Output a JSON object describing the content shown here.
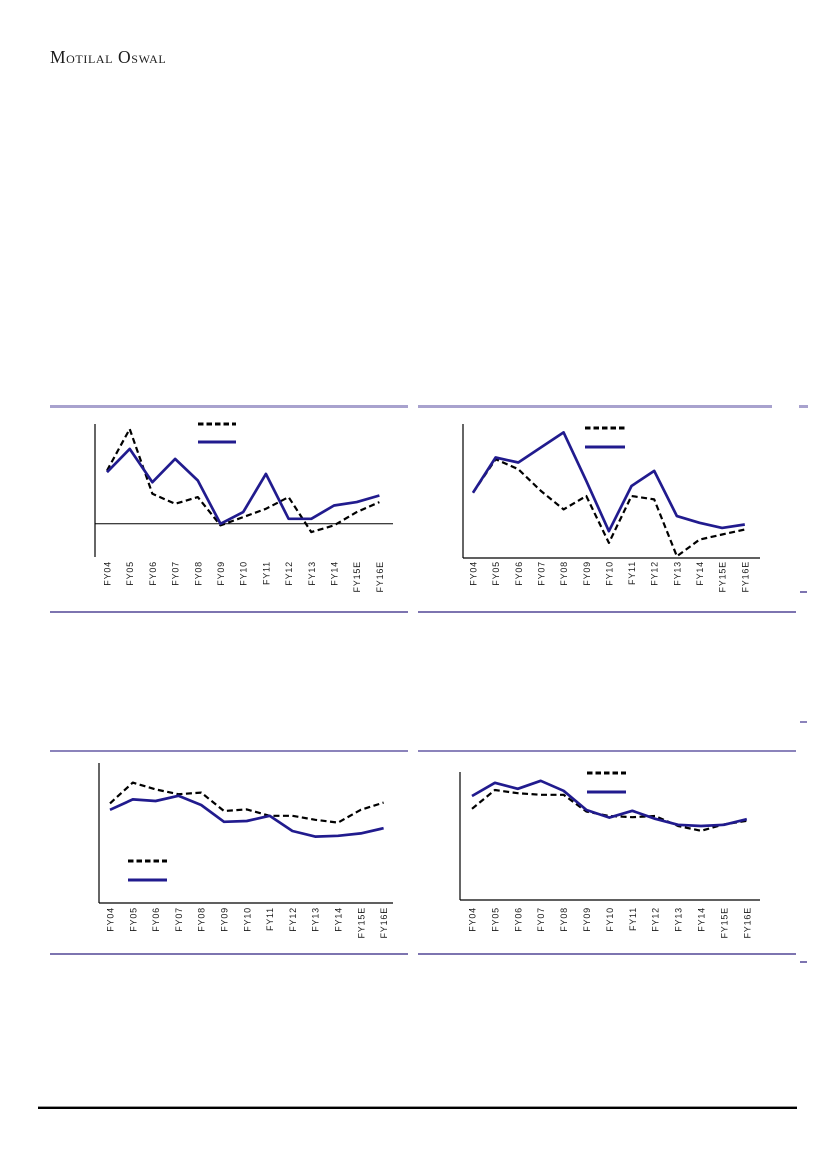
{
  "page": {
    "brand": "Motilal Oswal"
  },
  "colors": {
    "solid_series": "#211b8e",
    "dashed_series": "#000000",
    "axis": "#000000",
    "divider_light": "#a8a2ce",
    "divider_dark": "#7d74b0",
    "footer_rule": "#000000",
    "label_text": "#1a1a1a"
  },
  "chart_data": [
    {
      "id": "top-left",
      "type": "line",
      "title": "",
      "categories": [
        "FY04",
        "FY05",
        "FY06",
        "FY07",
        "FY08",
        "FY09",
        "FY10",
        "FY11",
        "FY12",
        "FY13",
        "FY14",
        "FY15E",
        "FY16E"
      ],
      "series": [
        {
          "name": "series-dashed",
          "line_style": "dashed",
          "color": "#000000",
          "values": [
            32,
            57,
            18,
            12,
            16,
            -1,
            4,
            9,
            16,
            -5,
            -1,
            7,
            13
          ]
        },
        {
          "name": "series-solid",
          "line_style": "solid",
          "color": "#211b8e",
          "values": [
            31,
            45,
            25,
            39,
            26,
            0,
            7,
            30,
            3,
            3,
            11,
            13,
            17
          ]
        }
      ],
      "ylim": [
        -20,
        60
      ],
      "y_tick_labels_visible": false,
      "zero_line": true,
      "x_baseline": false,
      "legend_position": "top-center",
      "legend_text_visible": false,
      "values_note": "estimated from plot pixels; no y-axis tick labels visible"
    },
    {
      "id": "top-right",
      "type": "line",
      "title": "",
      "categories": [
        "FY04",
        "FY05",
        "FY06",
        "FY07",
        "FY08",
        "FY09",
        "FY10",
        "FY11",
        "FY12",
        "FY13",
        "FY14",
        "FY15E",
        "FY16E"
      ],
      "series": [
        {
          "name": "series-dashed",
          "line_style": "dashed",
          "color": "#000000",
          "values": [
            39,
            59,
            53,
            40,
            29,
            37,
            9,
            37,
            35,
            1,
            11,
            14,
            17
          ]
        },
        {
          "name": "series-solid",
          "line_style": "solid",
          "color": "#211b8e",
          "values": [
            39,
            60,
            57,
            66,
            75,
            46,
            16,
            43,
            52,
            25,
            21,
            18,
            20
          ]
        }
      ],
      "ylim": [
        0,
        80
      ],
      "y_tick_labels_visible": false,
      "zero_line": false,
      "x_baseline": true,
      "legend_position": "top-center",
      "legend_text_visible": false,
      "values_note": "estimated from plot pixels; no y-axis tick labels visible"
    },
    {
      "id": "bottom-left",
      "type": "line",
      "title": "",
      "categories": [
        "FY04",
        "FY05",
        "FY06",
        "FY07",
        "FY08",
        "FY09",
        "FY10",
        "FY11",
        "FY12",
        "FY13",
        "FY14",
        "FY15E",
        "FY16E"
      ],
      "series": [
        {
          "name": "series-dashed",
          "line_style": "dashed",
          "color": "#000000",
          "values": [
            24.9,
            30.1,
            28.4,
            27.2,
            27.6,
            23.0,
            23.4,
            21.8,
            21.8,
            20.8,
            20.1,
            23.3,
            25.1
          ]
        },
        {
          "name": "series-solid",
          "line_style": "solid",
          "color": "#211b8e",
          "values": [
            23.3,
            25.9,
            25.5,
            26.8,
            24.5,
            20.3,
            20.5,
            21.8,
            18.0,
            16.6,
            16.8,
            17.4,
            18.7
          ]
        }
      ],
      "ylim": [
        0,
        35
      ],
      "y_tick_labels_visible": false,
      "zero_line": false,
      "x_baseline": true,
      "legend_position": "bottom-left-inside",
      "legend_text_visible": false,
      "values_note": "estimated from plot pixels; no y-axis tick labels visible"
    },
    {
      "id": "bottom-right",
      "type": "line",
      "title": "",
      "categories": [
        "FY04",
        "FY05",
        "FY06",
        "FY07",
        "FY08",
        "FY09",
        "FY10",
        "FY11",
        "FY12",
        "FY13",
        "FY14",
        "FY15E",
        "FY16E"
      ],
      "series": [
        {
          "name": "series-dashed",
          "line_style": "dashed",
          "color": "#000000",
          "values": [
            22.8,
            27.5,
            26.7,
            26.3,
            26.3,
            22.1,
            21.0,
            20.7,
            21.0,
            18.5,
            17.3,
            18.9,
            19.8
          ]
        },
        {
          "name": "series-solid",
          "line_style": "solid",
          "color": "#211b8e",
          "values": [
            26.0,
            29.3,
            27.8,
            29.8,
            27.3,
            22.5,
            20.6,
            22.3,
            20.3,
            18.8,
            18.5,
            18.8,
            20.2
          ]
        }
      ],
      "ylim": [
        0,
        32
      ],
      "y_tick_labels_visible": false,
      "zero_line": false,
      "x_baseline": true,
      "legend_position": "top-center",
      "legend_text_visible": false,
      "values_note": "estimated from plot pixels; no y-axis tick labels visible"
    }
  ]
}
